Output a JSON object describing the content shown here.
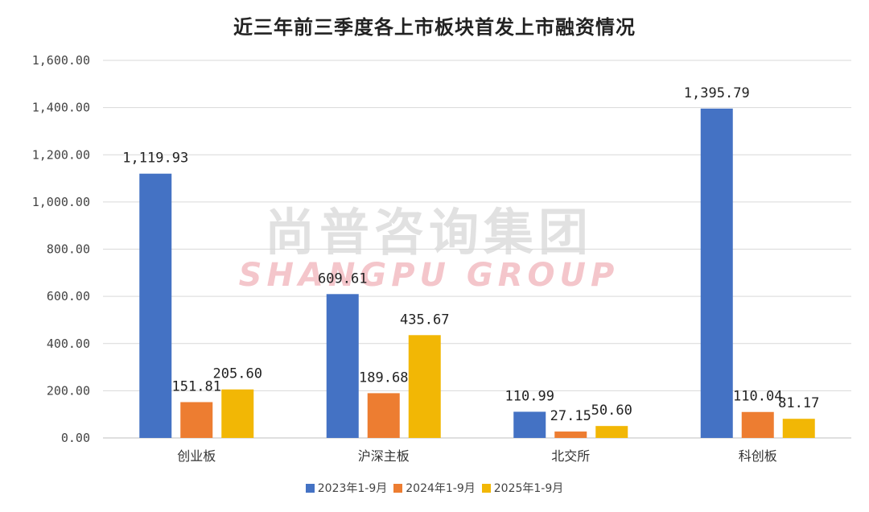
{
  "watermark": {
    "cn": "尚普咨询集团",
    "en": "SHANGPU GROUP"
  },
  "chart_data": {
    "type": "bar",
    "title": "近三年前三季度各上市板块首发上市融资情况",
    "categories": [
      "创业板",
      "沪深主板",
      "北交所",
      "科创板"
    ],
    "series": [
      {
        "name": "2023年1-9月",
        "color": "#4472C4",
        "values": [
          1119.93,
          609.61,
          110.99,
          1395.79
        ],
        "labels": [
          "1,119.93",
          "609.61",
          "110.99",
          "1,395.79"
        ]
      },
      {
        "name": "2024年1-9月",
        "color": "#ED7D31",
        "values": [
          151.81,
          189.68,
          27.15,
          110.04
        ],
        "labels": [
          "151.81",
          "189.68",
          "27.15",
          "110.04"
        ]
      },
      {
        "name": "2025年1-9月",
        "color": "#F2B705",
        "values": [
          205.6,
          435.67,
          50.6,
          81.17
        ],
        "labels": [
          "205.60",
          "435.67",
          "50.60",
          "81.17"
        ]
      }
    ],
    "yticks": [
      "0.00",
      "200.00",
      "400.00",
      "600.00",
      "800.00",
      "1,000.00",
      "1,200.00",
      "1,400.00",
      "1,600.00"
    ],
    "ylim": [
      0,
      1600
    ],
    "grid": true,
    "legend_position": "bottom"
  }
}
